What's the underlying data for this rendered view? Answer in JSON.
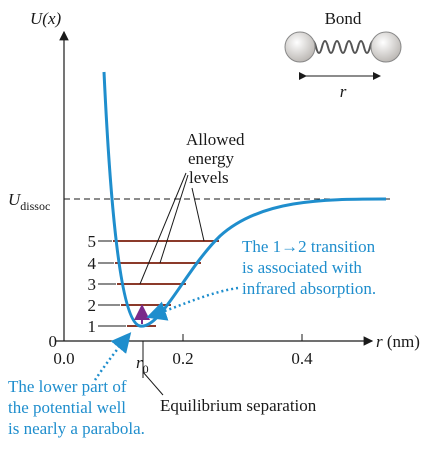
{
  "axes": {
    "y_label": "U(x)",
    "x_symbol": "r",
    "x_unit": "(nm)",
    "x_ticks": [
      "0.0",
      "0.2",
      "0.4"
    ],
    "dissociation": {
      "symbol": "U",
      "subscript": "dissoc"
    },
    "equilibrium": {
      "symbol": "r",
      "subscript": "0"
    }
  },
  "levels": [
    "0",
    "1",
    "2",
    "3",
    "4",
    "5"
  ],
  "bond": {
    "label": "Bond",
    "distance": "r"
  },
  "annotations": {
    "allowed": [
      "Allowed",
      "energy",
      "levels"
    ],
    "transition": [
      "The 1→2 transition",
      "is associated with",
      "infrared absorption."
    ],
    "parabola": [
      "The lower part of",
      "the potential well",
      "is nearly a parabola."
    ],
    "equilibrium": "Equilibrium separation"
  }
}
